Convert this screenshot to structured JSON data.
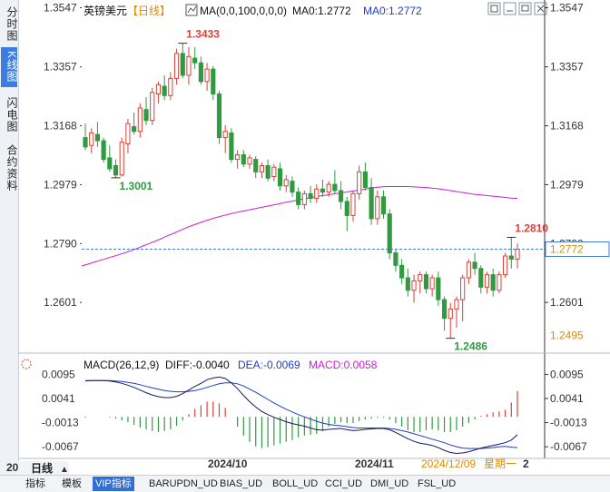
{
  "side_tabs": [
    "分时图",
    "K线图",
    "闪电图",
    "合约资料"
  ],
  "header": {
    "instrument": "英镑美元",
    "period": "【日线】",
    "ma_label": "MA(0,0,100,0,0,0)",
    "ma_value_1": "MA0:1.2772",
    "ma_value_2": "MA0:1.2772"
  },
  "price_axis": {
    "ticks": [
      "1.3547",
      "1.3357",
      "1.3168",
      "1.2979",
      "1.2790",
      "1.2601"
    ],
    "current_label": "1.2772",
    "low_label": "1.2495"
  },
  "annotations": {
    "high": "1.3433",
    "low1": "1.3001",
    "low2": "1.2486",
    "recent_high": "1.2810"
  },
  "macd": {
    "title": "MACD(26,12,9)",
    "diff": "DIFF:-0.0040",
    "dea": "DEA:-0.0069",
    "macd": "MACD:0.0058",
    "ticks": [
      "0.0095",
      "0.0041",
      "-0.0013",
      "-0.0067"
    ]
  },
  "date_axis": {
    "labels": [
      "2024/10",
      "2024/11"
    ],
    "cursor_date": "2024/12/09",
    "cursor_weekday": "星期一",
    "page_num": "2",
    "partial_left": "20"
  },
  "bottom_bar": {
    "period_tab": "日线",
    "tabs": [
      "指标",
      "模板",
      "VIP指标",
      "BARUPDN_UD",
      "BIAS_UD",
      "BOLL_UD",
      "CCI_UD",
      "DMI_UD",
      "FSL_UD"
    ],
    "active_tab": "VIP指标"
  },
  "colors": {
    "up": "#d6433b",
    "down": "#2f9a3f",
    "ma_line": "#c71fd6",
    "axis_text": "#333333",
    "current_price_line": "#3f7fd6",
    "current_label_text": "#e08a00",
    "diff_line": "#111a66",
    "dea_line": "#1e3cc8",
    "macd_title_diff": "#111111",
    "macd_title_dea": "#1e3cc8",
    "macd_title_macd": "#c71fd6"
  },
  "icons": [
    "chart-icon",
    "window-icon",
    "minimize-icon",
    "maximize-icon",
    "close-icon"
  ],
  "chart_data": {
    "type": "candlestick",
    "title": "英镑美元【日线】",
    "ylim": [
      1.245,
      1.356
    ],
    "x_labels": [
      "2024/10",
      "2024/11"
    ],
    "y_ticks": [
      1.3547,
      1.3357,
      1.3168,
      1.2979,
      1.279,
      1.2601
    ],
    "current_price": 1.2772,
    "candles": [
      {
        "o": 1.313,
        "h": 1.3175,
        "l": 1.309,
        "c": 1.31
      },
      {
        "o": 1.3105,
        "h": 1.316,
        "l": 1.308,
        "c": 1.3145
      },
      {
        "o": 1.314,
        "h": 1.318,
        "l": 1.31,
        "c": 1.312
      },
      {
        "o": 1.312,
        "h": 1.313,
        "l": 1.305,
        "c": 1.306
      },
      {
        "o": 1.3065,
        "h": 1.3105,
        "l": 1.302,
        "c": 1.303
      },
      {
        "o": 1.304,
        "h": 1.306,
        "l": 1.3001,
        "c": 1.301
      },
      {
        "o": 1.301,
        "h": 1.313,
        "l": 1.3005,
        "c": 1.3115
      },
      {
        "o": 1.311,
        "h": 1.319,
        "l": 1.308,
        "c": 1.3175
      },
      {
        "o": 1.3165,
        "h": 1.321,
        "l": 1.314,
        "c": 1.315
      },
      {
        "o": 1.315,
        "h": 1.324,
        "l": 1.313,
        "c": 1.3225
      },
      {
        "o": 1.322,
        "h": 1.326,
        "l": 1.317,
        "c": 1.3185
      },
      {
        "o": 1.3185,
        "h": 1.329,
        "l": 1.317,
        "c": 1.3275
      },
      {
        "o": 1.327,
        "h": 1.331,
        "l": 1.324,
        "c": 1.33
      },
      {
        "o": 1.3295,
        "h": 1.333,
        "l": 1.325,
        "c": 1.3265
      },
      {
        "o": 1.3265,
        "h": 1.334,
        "l": 1.325,
        "c": 1.332
      },
      {
        "o": 1.332,
        "h": 1.3415,
        "l": 1.33,
        "c": 1.34
      },
      {
        "o": 1.34,
        "h": 1.3433,
        "l": 1.332,
        "c": 1.333
      },
      {
        "o": 1.333,
        "h": 1.342,
        "l": 1.33,
        "c": 1.339
      },
      {
        "o": 1.3385,
        "h": 1.342,
        "l": 1.335,
        "c": 1.337
      },
      {
        "o": 1.337,
        "h": 1.339,
        "l": 1.33,
        "c": 1.331
      },
      {
        "o": 1.331,
        "h": 1.337,
        "l": 1.328,
        "c": 1.335
      },
      {
        "o": 1.335,
        "h": 1.336,
        "l": 1.325,
        "c": 1.327
      },
      {
        "o": 1.327,
        "h": 1.328,
        "l": 1.311,
        "c": 1.313
      },
      {
        "o": 1.313,
        "h": 1.317,
        "l": 1.308,
        "c": 1.315
      },
      {
        "o": 1.3145,
        "h": 1.316,
        "l": 1.305,
        "c": 1.306
      },
      {
        "o": 1.306,
        "h": 1.309,
        "l": 1.303,
        "c": 1.3075
      },
      {
        "o": 1.3075,
        "h": 1.309,
        "l": 1.3035,
        "c": 1.3045
      },
      {
        "o": 1.3045,
        "h": 1.3075,
        "l": 1.303,
        "c": 1.3065
      },
      {
        "o": 1.306,
        "h": 1.307,
        "l": 1.3,
        "c": 1.302
      },
      {
        "o": 1.302,
        "h": 1.305,
        "l": 1.3,
        "c": 1.304
      },
      {
        "o": 1.304,
        "h": 1.306,
        "l": 1.299,
        "c": 1.3
      },
      {
        "o": 1.3005,
        "h": 1.3045,
        "l": 1.299,
        "c": 1.3035
      },
      {
        "o": 1.303,
        "h": 1.305,
        "l": 1.296,
        "c": 1.2975
      },
      {
        "o": 1.2975,
        "h": 1.301,
        "l": 1.2955,
        "c": 1.2995
      },
      {
        "o": 1.299,
        "h": 1.3005,
        "l": 1.294,
        "c": 1.2955
      },
      {
        "o": 1.2955,
        "h": 1.297,
        "l": 1.29,
        "c": 1.2915
      },
      {
        "o": 1.2915,
        "h": 1.296,
        "l": 1.29,
        "c": 1.295
      },
      {
        "o": 1.295,
        "h": 1.2975,
        "l": 1.292,
        "c": 1.2935
      },
      {
        "o": 1.2935,
        "h": 1.298,
        "l": 1.292,
        "c": 1.2965
      },
      {
        "o": 1.2965,
        "h": 1.2995,
        "l": 1.294,
        "c": 1.2955
      },
      {
        "o": 1.2955,
        "h": 1.299,
        "l": 1.294,
        "c": 1.298
      },
      {
        "o": 1.298,
        "h": 1.3025,
        "l": 1.295,
        "c": 1.296
      },
      {
        "o": 1.296,
        "h": 1.299,
        "l": 1.29,
        "c": 1.2925
      },
      {
        "o": 1.2925,
        "h": 1.294,
        "l": 1.283,
        "c": 1.288
      },
      {
        "o": 1.288,
        "h": 1.296,
        "l": 1.286,
        "c": 1.295
      },
      {
        "o": 1.295,
        "h": 1.304,
        "l": 1.293,
        "c": 1.302
      },
      {
        "o": 1.302,
        "h": 1.305,
        "l": 1.296,
        "c": 1.297
      },
      {
        "o": 1.297,
        "h": 1.3,
        "l": 1.285,
        "c": 1.287
      },
      {
        "o": 1.287,
        "h": 1.296,
        "l": 1.285,
        "c": 1.294
      },
      {
        "o": 1.294,
        "h": 1.296,
        "l": 1.287,
        "c": 1.2885
      },
      {
        "o": 1.2885,
        "h": 1.29,
        "l": 1.274,
        "c": 1.276
      },
      {
        "o": 1.276,
        "h": 1.277,
        "l": 1.27,
        "c": 1.272
      },
      {
        "o": 1.272,
        "h": 1.274,
        "l": 1.266,
        "c": 1.268
      },
      {
        "o": 1.268,
        "h": 1.271,
        "l": 1.262,
        "c": 1.264
      },
      {
        "o": 1.264,
        "h": 1.269,
        "l": 1.26,
        "c": 1.267
      },
      {
        "o": 1.267,
        "h": 1.27,
        "l": 1.263,
        "c": 1.269
      },
      {
        "o": 1.269,
        "h": 1.27,
        "l": 1.263,
        "c": 1.2645
      },
      {
        "o": 1.2645,
        "h": 1.269,
        "l": 1.262,
        "c": 1.268
      },
      {
        "o": 1.268,
        "h": 1.27,
        "l": 1.259,
        "c": 1.261
      },
      {
        "o": 1.261,
        "h": 1.262,
        "l": 1.251,
        "c": 1.255
      },
      {
        "o": 1.255,
        "h": 1.26,
        "l": 1.2486,
        "c": 1.258
      },
      {
        "o": 1.258,
        "h": 1.262,
        "l": 1.252,
        "c": 1.261
      },
      {
        "o": 1.261,
        "h": 1.269,
        "l": 1.254,
        "c": 1.268
      },
      {
        "o": 1.268,
        "h": 1.274,
        "l": 1.266,
        "c": 1.273
      },
      {
        "o": 1.273,
        "h": 1.276,
        "l": 1.269,
        "c": 1.271
      },
      {
        "o": 1.271,
        "h": 1.272,
        "l": 1.263,
        "c": 1.265
      },
      {
        "o": 1.265,
        "h": 1.27,
        "l": 1.263,
        "c": 1.269
      },
      {
        "o": 1.269,
        "h": 1.271,
        "l": 1.262,
        "c": 1.264
      },
      {
        "o": 1.264,
        "h": 1.27,
        "l": 1.263,
        "c": 1.269
      },
      {
        "o": 1.269,
        "h": 1.276,
        "l": 1.268,
        "c": 1.275
      },
      {
        "o": 1.275,
        "h": 1.281,
        "l": 1.271,
        "c": 1.274
      },
      {
        "o": 1.274,
        "h": 1.279,
        "l": 1.271,
        "c": 1.2772
      }
    ],
    "ma": [
      1.2718,
      1.2724,
      1.273,
      1.2736,
      1.2742,
      1.2748,
      1.2754,
      1.276,
      1.2767,
      1.2774,
      1.2782,
      1.279,
      1.2798,
      1.2806,
      1.2815,
      1.2823,
      1.2832,
      1.284,
      1.2848,
      1.2855,
      1.2862,
      1.2868,
      1.2874,
      1.2879,
      1.2884,
      1.2889,
      1.2893,
      1.2897,
      1.2901,
      1.2905,
      1.2909,
      1.2913,
      1.2917,
      1.2921,
      1.2925,
      1.2929,
      1.2933,
      1.2936,
      1.294,
      1.2943,
      1.2946,
      1.2949,
      1.2952,
      1.2955,
      1.2958,
      1.2961,
      1.2964,
      1.2967,
      1.297,
      1.2972,
      1.2973,
      1.2973,
      1.2973,
      1.2973,
      1.2972,
      1.2971,
      1.297,
      1.2968,
      1.2966,
      1.2963,
      1.296,
      1.2957,
      1.2954,
      1.2951,
      1.2948,
      1.2946,
      1.2944,
      1.2942,
      1.294,
      1.2938,
      1.2936,
      1.2935
    ],
    "macd_series": {
      "ylim": [
        -0.0085,
        0.0102
      ],
      "diff": [
        0.008,
        0.0081,
        0.0081,
        0.0081,
        0.008,
        0.0078,
        0.0075,
        0.0071,
        0.0066,
        0.006,
        0.0054,
        0.0049,
        0.0045,
        0.0043,
        0.0043,
        0.0046,
        0.0052,
        0.006,
        0.0068,
        0.0075,
        0.0083,
        0.0087,
        0.0089,
        0.0086,
        0.0076,
        0.0063,
        0.0048,
        0.0034,
        0.0022,
        0.0012,
        0.0005,
        -0.0001,
        -0.0006,
        -0.0011,
        -0.0015,
        -0.0018,
        -0.0021,
        -0.0025,
        -0.0029,
        -0.003,
        -0.0028,
        -0.0027,
        -0.0026,
        -0.0029,
        -0.0031,
        -0.003,
        -0.0028,
        -0.0027,
        -0.0026,
        -0.0026,
        -0.0029,
        -0.0035,
        -0.0042,
        -0.0049,
        -0.0055,
        -0.0059,
        -0.0061,
        -0.0064,
        -0.0069,
        -0.0075,
        -0.008,
        -0.0082,
        -0.0081,
        -0.0078,
        -0.0074,
        -0.007,
        -0.0067,
        -0.0064,
        -0.0061,
        -0.0058,
        -0.0052,
        -0.004
      ],
      "dea": [
        0.0081,
        0.0081,
        0.0081,
        0.0081,
        0.0081,
        0.008,
        0.0079,
        0.0077,
        0.0075,
        0.0072,
        0.0068,
        0.0065,
        0.0062,
        0.0059,
        0.0057,
        0.0056,
        0.0056,
        0.0057,
        0.0059,
        0.0062,
        0.0066,
        0.007,
        0.0074,
        0.0076,
        0.0076,
        0.0074,
        0.0069,
        0.0062,
        0.0055,
        0.0047,
        0.0039,
        0.0031,
        0.0024,
        0.0017,
        0.0011,
        0.0005,
        0.0,
        -0.0005,
        -0.001,
        -0.0014,
        -0.0017,
        -0.0019,
        -0.002,
        -0.0022,
        -0.0024,
        -0.0025,
        -0.0025,
        -0.0025,
        -0.0025,
        -0.0025,
        -0.0026,
        -0.0028,
        -0.0031,
        -0.0034,
        -0.0038,
        -0.0042,
        -0.0046,
        -0.005,
        -0.0054,
        -0.0058,
        -0.0063,
        -0.0067,
        -0.007,
        -0.0071,
        -0.0071,
        -0.0071,
        -0.007,
        -0.0069,
        -0.0067,
        -0.0066,
        -0.0068,
        -0.0069
      ]
    }
  }
}
